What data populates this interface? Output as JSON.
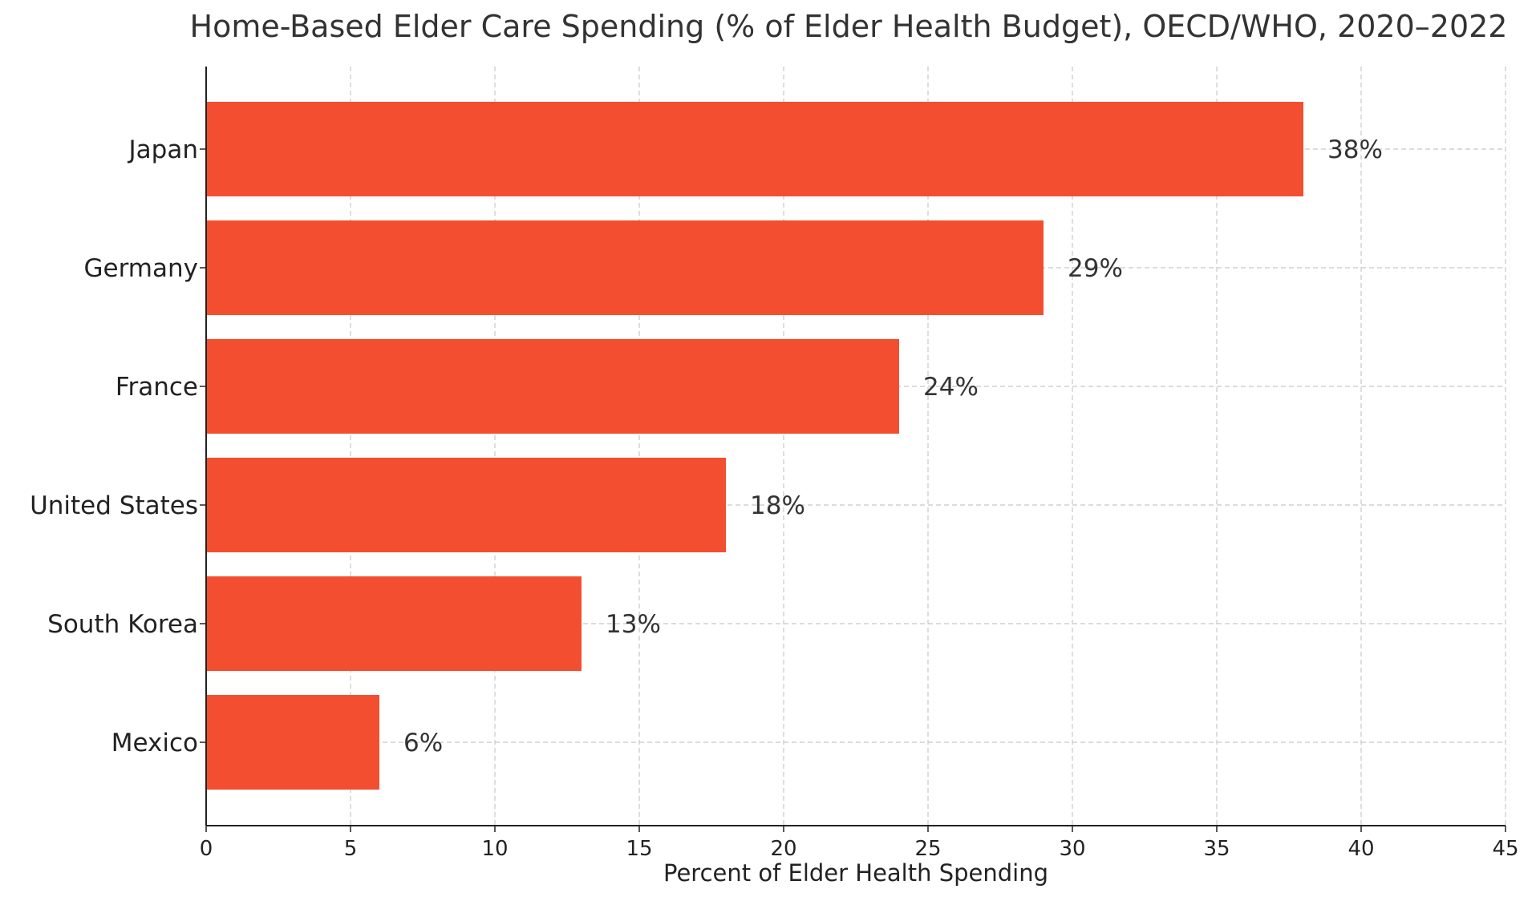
{
  "chart_data": {
    "type": "bar",
    "orientation": "horizontal",
    "title": "Home-Based Elder Care Spending (% of Elder Health Budget), OECD/WHO, 2020–2022",
    "xlabel": "Percent of Elder Health Spending",
    "ylabel": "",
    "categories": [
      "Japan",
      "Germany",
      "France",
      "United States",
      "South Korea",
      "Mexico"
    ],
    "values": [
      38,
      29,
      24,
      18,
      13,
      6
    ],
    "data_labels": [
      "38%",
      "29%",
      "24%",
      "18%",
      "13%",
      "6%"
    ],
    "xlim": [
      0,
      45
    ],
    "xticks": [
      0,
      5,
      10,
      15,
      20,
      25,
      30,
      35,
      40,
      45
    ],
    "grid": true,
    "legend": "none",
    "colors": {
      "bar": "#f34e2f",
      "axis": "#222222",
      "grid": "#c8c8c8"
    }
  }
}
